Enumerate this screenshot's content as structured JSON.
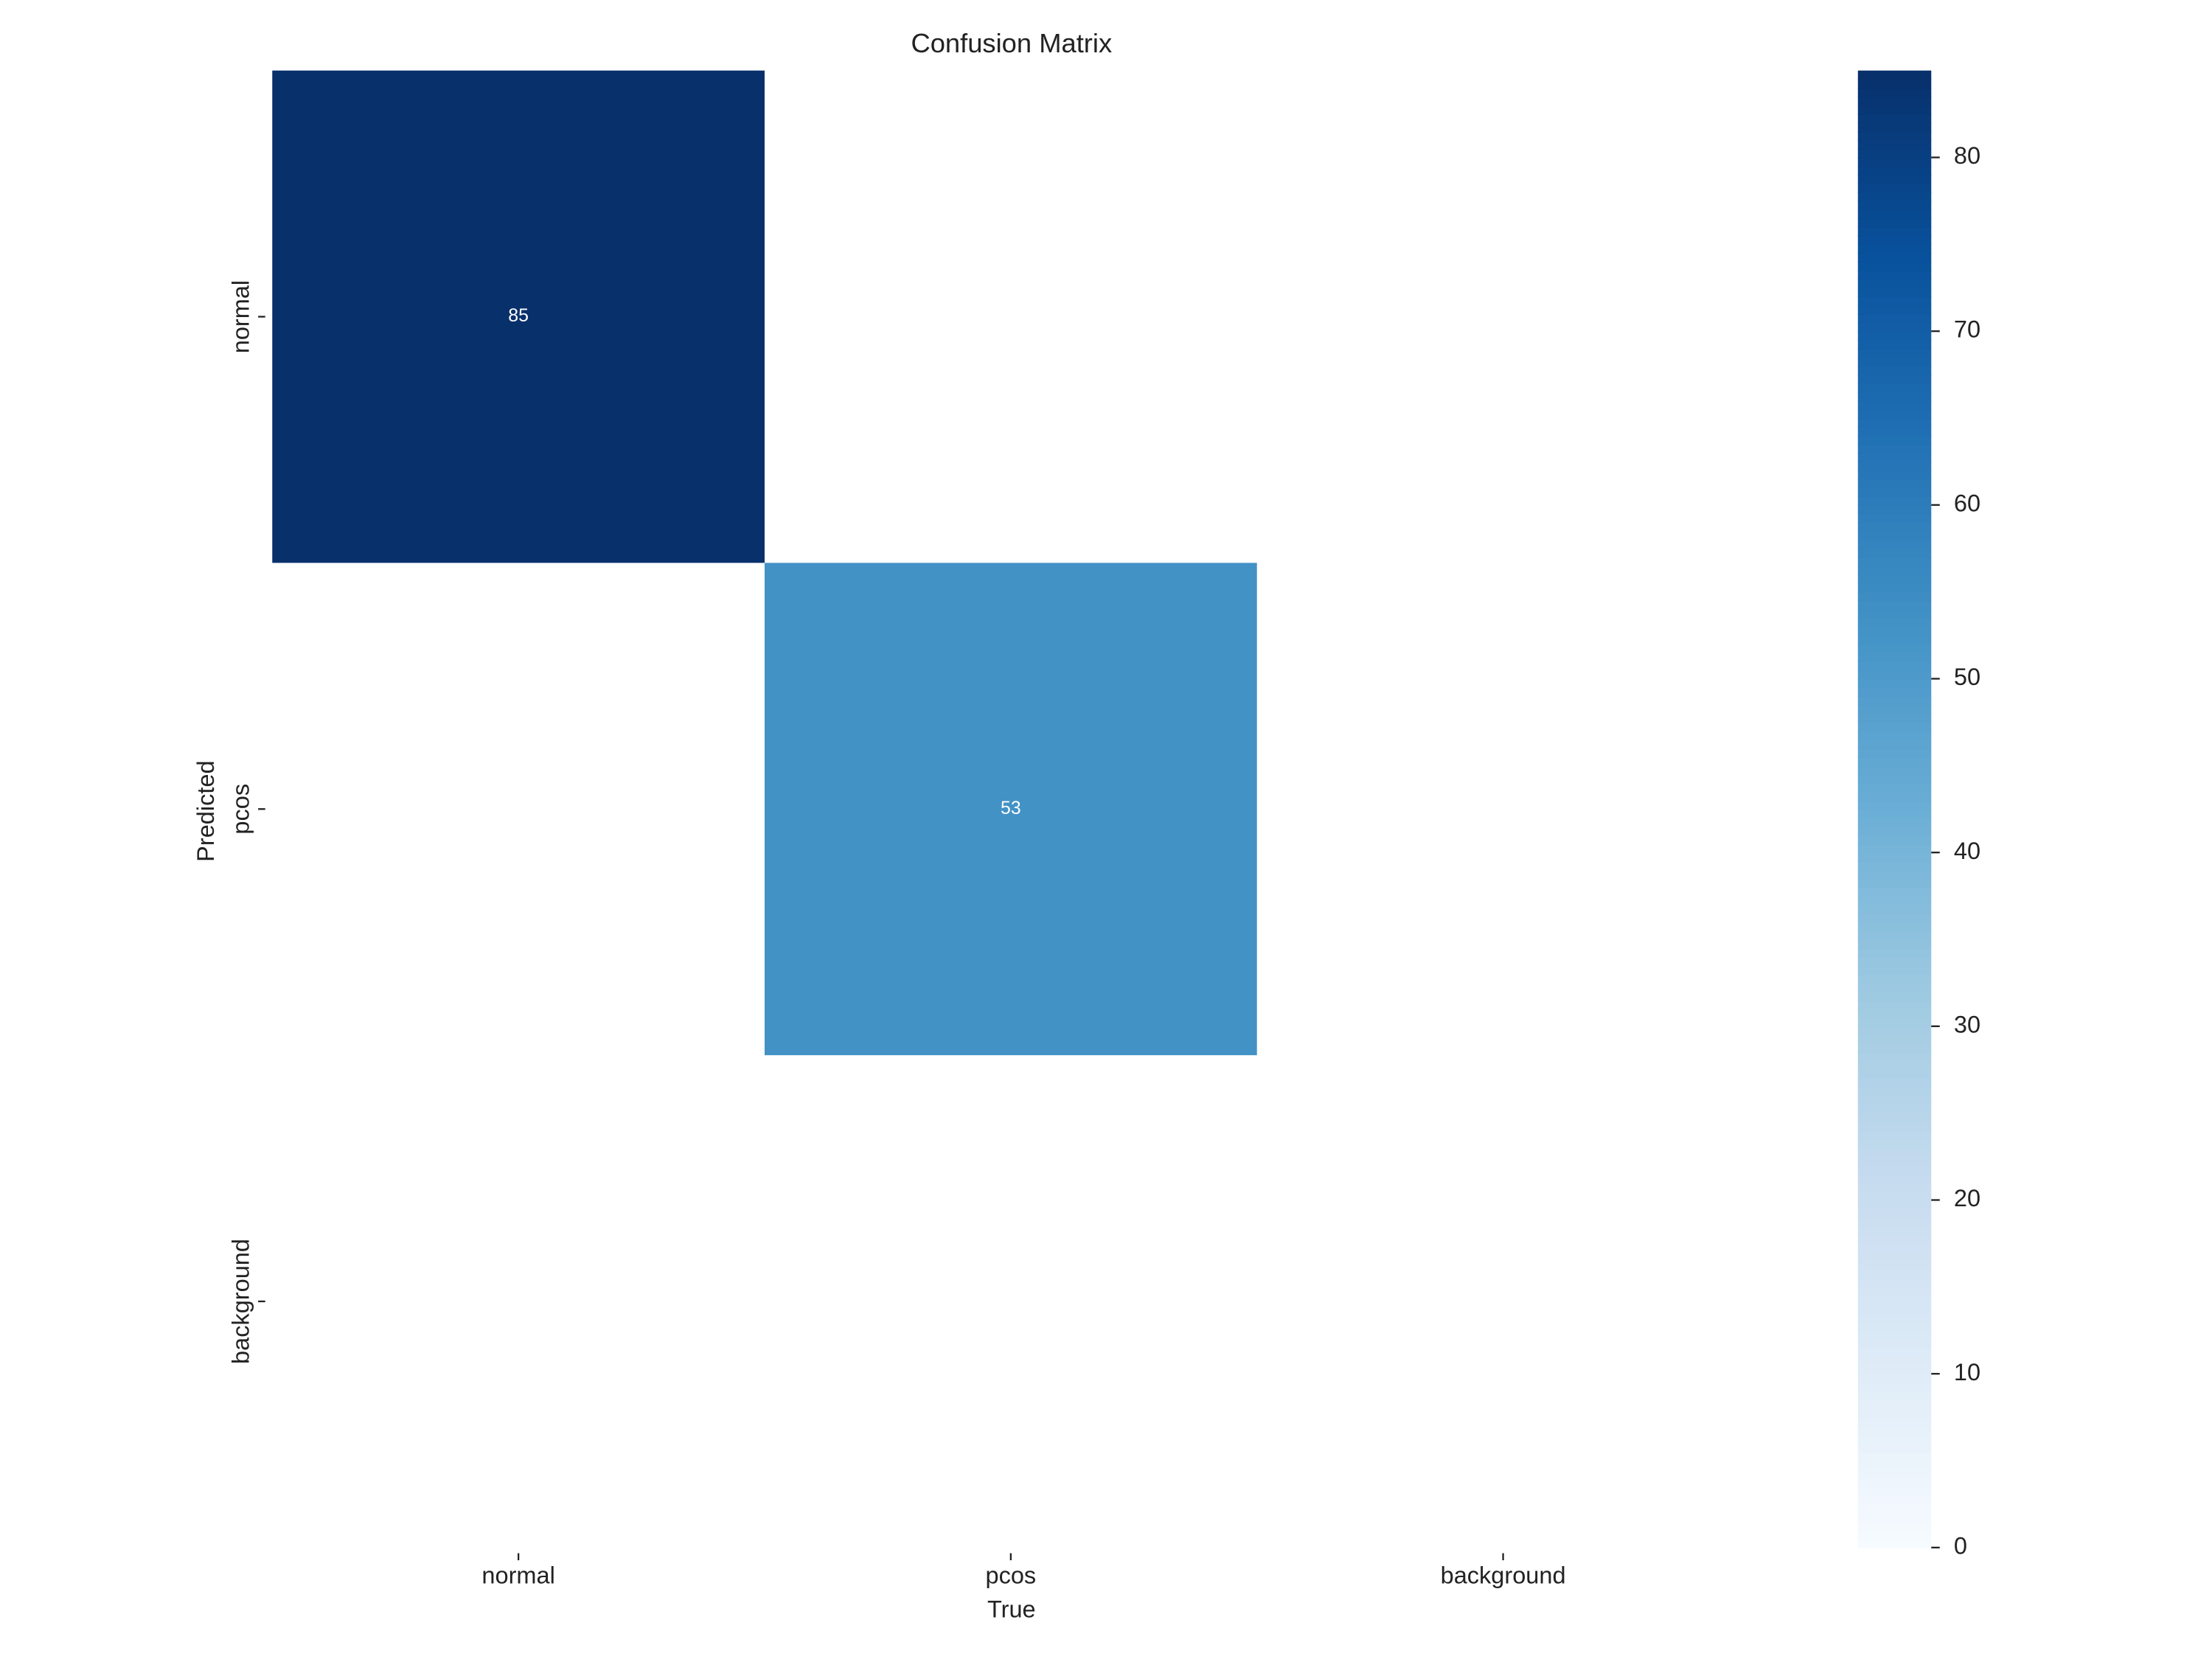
{
  "chart_data": {
    "type": "heatmap",
    "title": "Confusion Matrix",
    "x_label": "True",
    "y_label": "Predicted",
    "x_categories": [
      "normal",
      "pcos",
      "background"
    ],
    "y_categories": [
      "normal",
      "pcos",
      "background"
    ],
    "values": [
      [
        85,
        null,
        null
      ],
      [
        null,
        53,
        null
      ],
      [
        null,
        null,
        null
      ]
    ],
    "colorscale": [
      "#f7fbff",
      "#deebf7",
      "#c6dbef",
      "#9ecae1",
      "#6baed6",
      "#4292c6",
      "#2171b5",
      "#08519c",
      "#08306b"
    ],
    "clim": [
      0,
      85
    ],
    "cticks": [
      0,
      10,
      20,
      30,
      40,
      50,
      60,
      70,
      80
    ]
  }
}
